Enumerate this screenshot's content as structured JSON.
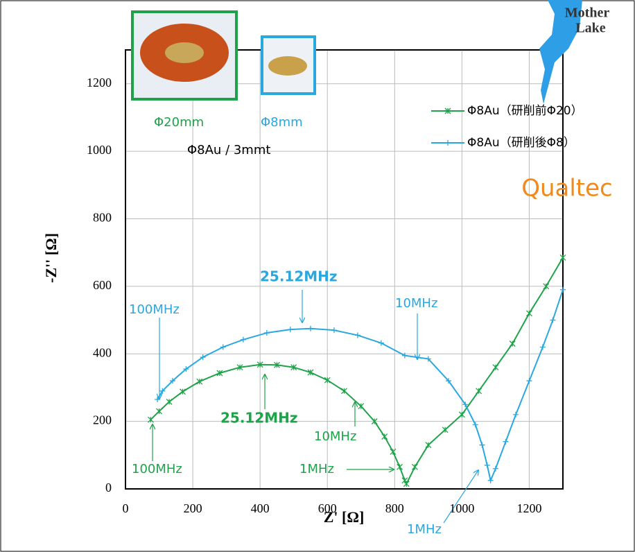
{
  "chart_data": {
    "type": "scatter-line",
    "xlabel": "Z' [Ω]",
    "ylabel": "-Z'' [Ω]",
    "xlim": [
      0,
      1300
    ],
    "ylim": [
      0,
      1300
    ],
    "xticks": [
      0,
      200,
      400,
      600,
      800,
      1000,
      1200
    ],
    "yticks": [
      0,
      200,
      400,
      600,
      800,
      1000,
      1200
    ],
    "grid": true,
    "legend": "upper right",
    "series": [
      {
        "name": "Φ8Au（研削前Φ20）",
        "color": "#1fa34a",
        "marker": "asterisk",
        "x": [
          75,
          100,
          130,
          170,
          220,
          280,
          340,
          400,
          450,
          500,
          550,
          600,
          650,
          700,
          740,
          770,
          795,
          815,
          830,
          835,
          860,
          900,
          950,
          1000,
          1050,
          1100,
          1150,
          1200,
          1250,
          1300
        ],
        "values": [
          205,
          230,
          258,
          288,
          318,
          343,
          360,
          368,
          367,
          360,
          345,
          322,
          290,
          245,
          200,
          155,
          110,
          65,
          25,
          15,
          65,
          130,
          175,
          220,
          290,
          360,
          430,
          520,
          600,
          685
        ]
      },
      {
        "name": "Φ8Au（研削後Φ8）",
        "color": "#29a8e0",
        "marker": "plus",
        "x": [
          95,
          110,
          140,
          180,
          230,
          290,
          350,
          420,
          490,
          550,
          620,
          690,
          760,
          830,
          900,
          960,
          1010,
          1040,
          1060,
          1075,
          1085,
          1100,
          1130,
          1160,
          1200,
          1240,
          1270,
          1300
        ],
        "values": [
          265,
          290,
          320,
          355,
          390,
          420,
          442,
          462,
          472,
          475,
          470,
          455,
          432,
          395,
          385,
          320,
          250,
          190,
          130,
          70,
          25,
          60,
          140,
          220,
          320,
          420,
          500,
          590
        ]
      }
    ],
    "annotations": [
      {
        "text": "100MHz",
        "color": "#29a8e0",
        "bold": false
      },
      {
        "text": "25.12MHz",
        "color": "#29a8e0",
        "bold": true
      },
      {
        "text": "10MHz",
        "color": "#29a8e0",
        "bold": false
      },
      {
        "text": "1MHz",
        "color": "#29a8e0",
        "bold": false
      },
      {
        "text": "100MHz",
        "color": "#1fa34a",
        "bold": false
      },
      {
        "text": "25.12MHz",
        "color": "#1fa34a",
        "bold": true
      },
      {
        "text": "10MHz",
        "color": "#1fa34a",
        "bold": false
      },
      {
        "text": "1MHz",
        "color": "#1fa34a",
        "bold": false
      },
      {
        "text": "Φ20mm",
        "color": "#1fa34a",
        "bold": false
      },
      {
        "text": "Φ8mm",
        "color": "#29a8e0",
        "bold": false
      },
      {
        "text": "Φ8Au / 3mmt",
        "color": "#000000",
        "bold": false
      }
    ],
    "logos": [
      "Mother",
      "Lake",
      "Qualtec"
    ]
  }
}
